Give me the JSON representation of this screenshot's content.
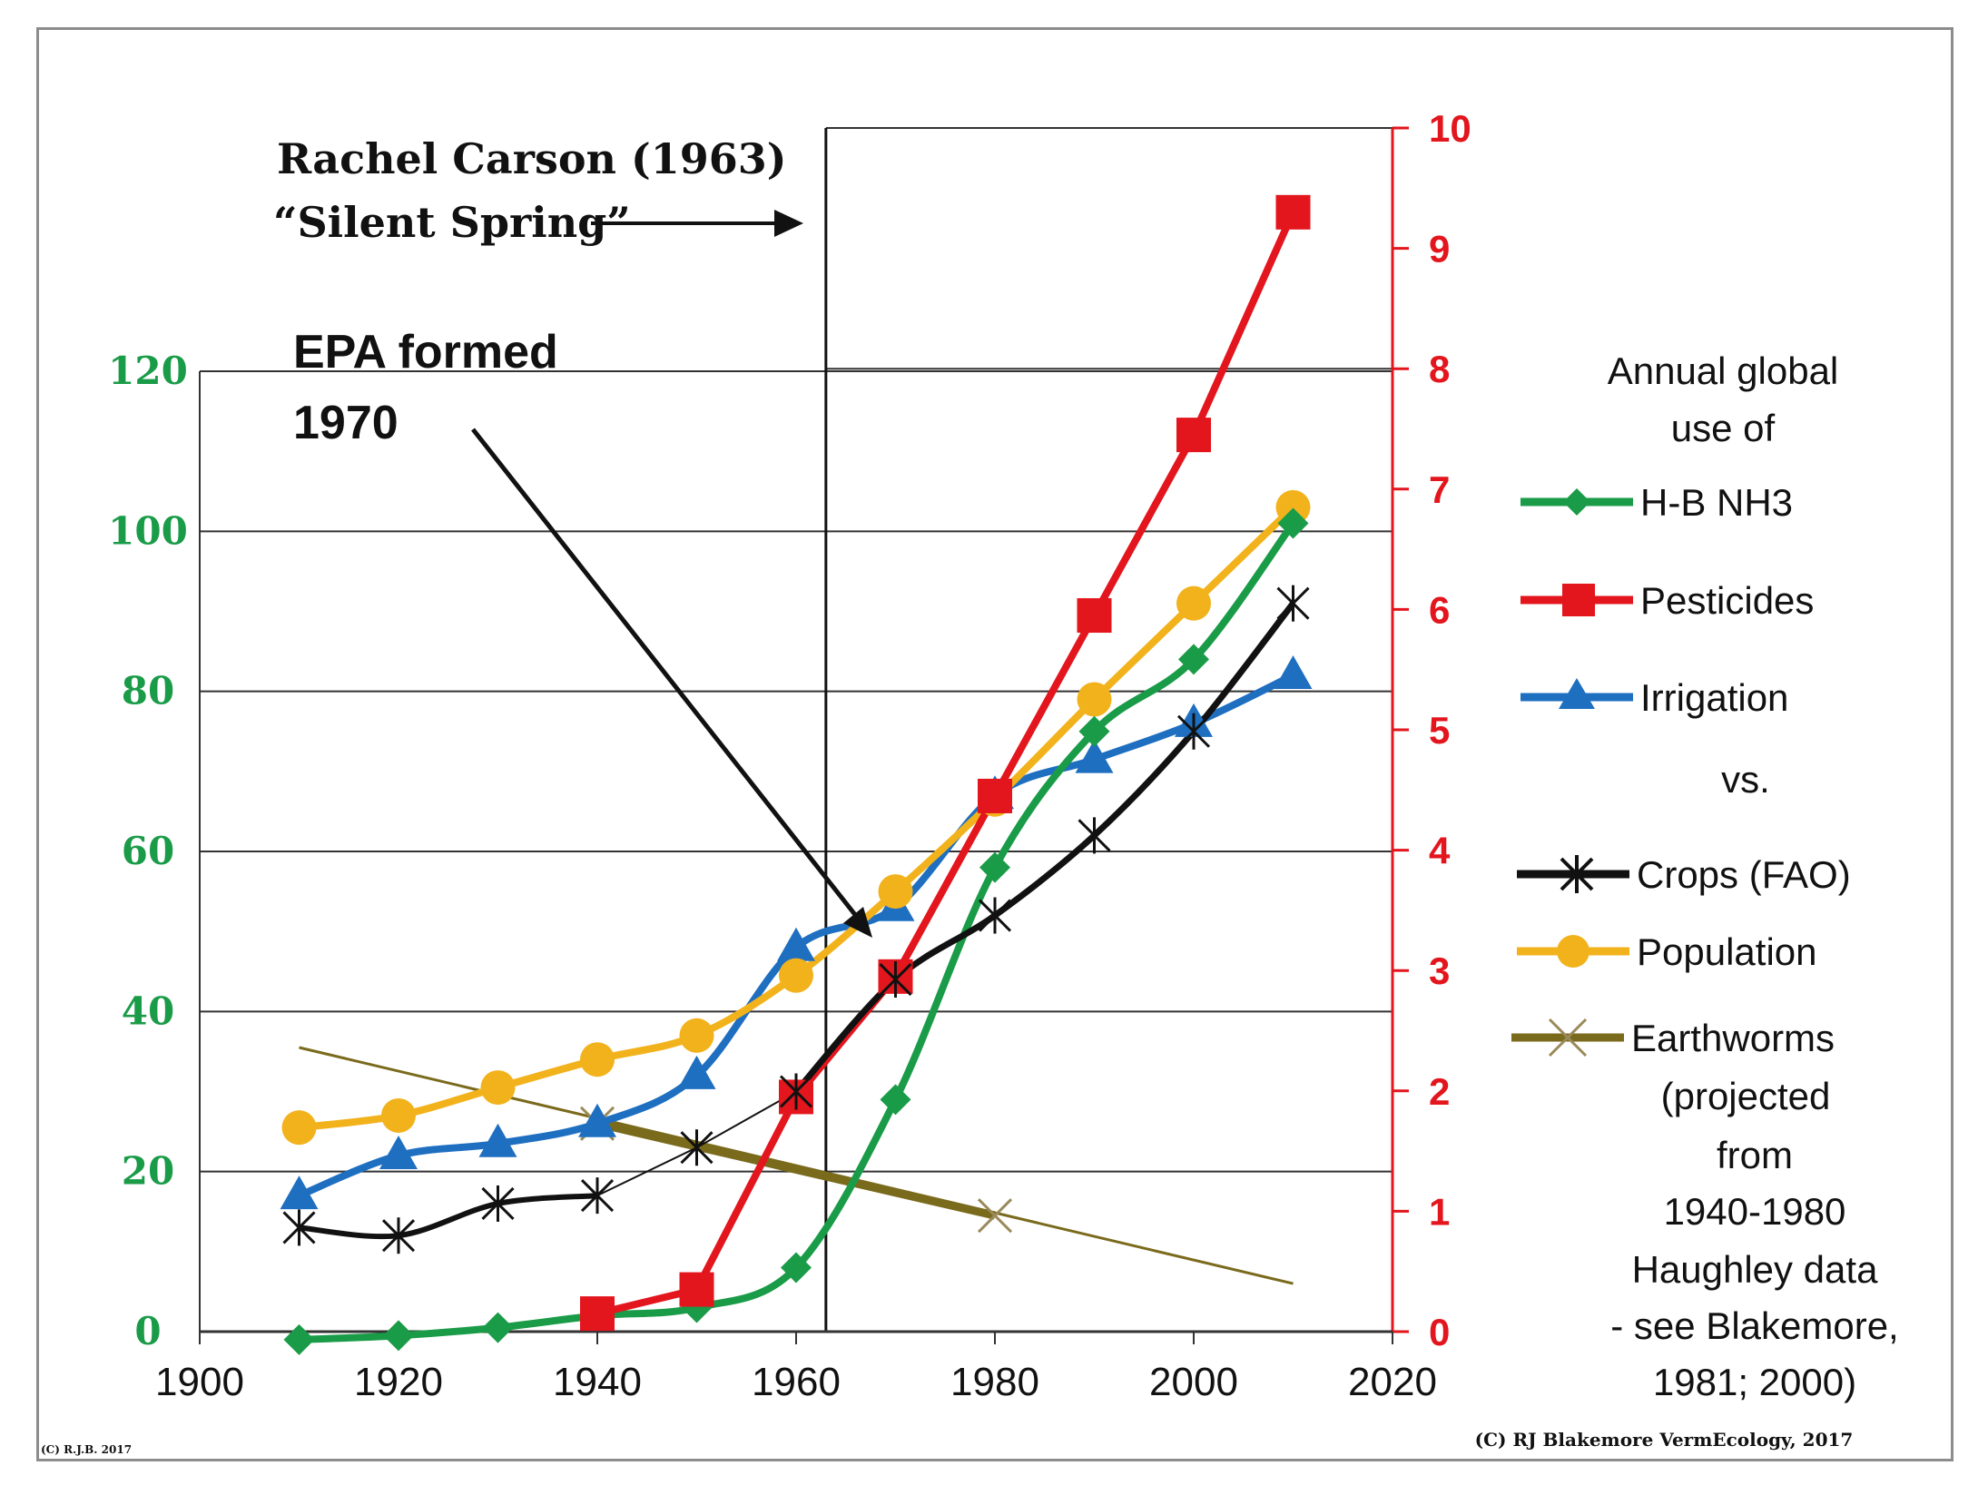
{
  "chart_data": {
    "type": "line",
    "title": "Annual global use of H-B NH3, Pesticides, Irrigation vs. Crops (FAO), Population, Earthworms",
    "xlabel": "",
    "ylabel_left": "",
    "ylabel_right": "",
    "xlim": [
      1900,
      2020
    ],
    "ylim_left": [
      0,
      120
    ],
    "ylim_right": [
      0,
      10
    ],
    "x_ticks": [
      "1900",
      "1920",
      "1940",
      "1960",
      "1980",
      "2000",
      "2020"
    ],
    "y_ticks_left": [
      "0",
      "20",
      "40",
      "60",
      "80",
      "100",
      "120"
    ],
    "y_ticks_right": [
      "0",
      "1",
      "2",
      "3",
      "4",
      "5",
      "6",
      "7",
      "8",
      "9",
      "10"
    ],
    "grid": true,
    "series": [
      {
        "name": "H-B NH3",
        "axis": "left",
        "color": "#1a9b48",
        "marker": "diamond",
        "x": [
          1910,
          1920,
          1930,
          1940,
          1950,
          1960,
          1970,
          1980,
          1990,
          2000,
          2010
        ],
        "y": [
          -1,
          -0.5,
          0.5,
          2,
          3,
          8,
          29,
          58,
          75,
          84,
          101
        ]
      },
      {
        "name": "Pesticides",
        "axis": "right",
        "color": "#e3151d",
        "marker": "square",
        "x": [
          1940,
          1950,
          1960,
          1970,
          1980,
          1990,
          2000,
          2010
        ],
        "y": [
          0.15,
          0.35,
          1.95,
          2.95,
          4.45,
          5.95,
          7.45,
          9.3
        ]
      },
      {
        "name": "Irrigation",
        "axis": "left",
        "color": "#1f6fc1",
        "marker": "triangle",
        "x": [
          1910,
          1920,
          1930,
          1940,
          1950,
          1960,
          1970,
          1980,
          1990,
          2000,
          2010
        ],
        "y": [
          17,
          22,
          23.5,
          26,
          32,
          48,
          53,
          67,
          71.5,
          76,
          82
        ]
      },
      {
        "name": "Crops (FAO)",
        "axis": "left",
        "color": "#111111",
        "marker": "asterisk",
        "x": [
          1910,
          1920,
          1930,
          1940,
          1950,
          1960,
          1970,
          1980,
          1990,
          2000,
          2010
        ],
        "y": [
          13,
          12,
          16,
          17,
          23,
          30,
          44,
          52,
          62,
          75,
          91
        ]
      },
      {
        "name": "Population",
        "axis": "left",
        "color": "#f2b21c",
        "marker": "circle",
        "x": [
          1910,
          1920,
          1930,
          1940,
          1950,
          1960,
          1970,
          1980,
          1990,
          2000,
          2010
        ],
        "y": [
          25.5,
          27,
          30.5,
          34,
          37,
          44.5,
          55,
          66.5,
          79,
          91,
          103
        ]
      },
      {
        "name": "Earthworms",
        "axis": "left",
        "color": "#7a6a1c",
        "marker": "x",
        "x": [
          1910,
          1940,
          1980,
          2010
        ],
        "y": [
          35.5,
          26,
          14.5,
          6
        ],
        "thick_range": [
          1940,
          1980
        ]
      }
    ],
    "annotations": {
      "carson_line1": "Rachel Carson (1963)",
      "carson_line2": "“Silent Spring”",
      "carson_year": 1963,
      "epa_line1": "EPA formed",
      "epa_line2": "1970"
    },
    "legend": {
      "placement": "right",
      "title_line1": "Annual global",
      "title_line2": "use of",
      "vs_label": "vs.",
      "earthworm_note": [
        "(projected",
        "from",
        "1940-1980",
        "Haughley data",
        "- see Blakemore,",
        "1981; 2000)"
      ]
    }
  },
  "credits": {
    "main": "(C) RJ Blakemore   VermEcology, 2017",
    "small": "(C) R.J.B. 2017"
  },
  "colors": {
    "left_axis": "#1a9b48",
    "right_axis": "#e3151d",
    "grid": "#333333"
  }
}
